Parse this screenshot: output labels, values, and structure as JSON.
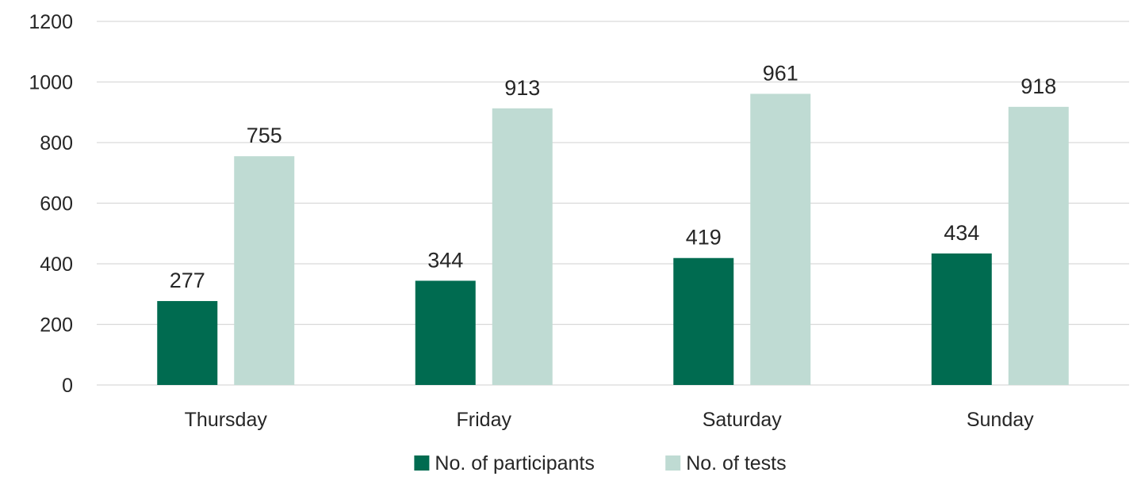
{
  "chart_data": {
    "type": "bar",
    "categories": [
      "Thursday",
      "Friday",
      "Saturday",
      "Sunday"
    ],
    "series": [
      {
        "name": "No. of participants",
        "values": [
          277,
          344,
          419,
          434
        ],
        "color": "#006b50"
      },
      {
        "name": "No. of tests",
        "values": [
          755,
          913,
          961,
          918
        ],
        "color": "#bfdbd3"
      }
    ],
    "ylim": [
      0,
      1200
    ],
    "yticks": [
      0,
      200,
      400,
      600,
      800,
      1000,
      1200
    ],
    "grid": true,
    "legend": "bottom",
    "data_labels": true
  }
}
